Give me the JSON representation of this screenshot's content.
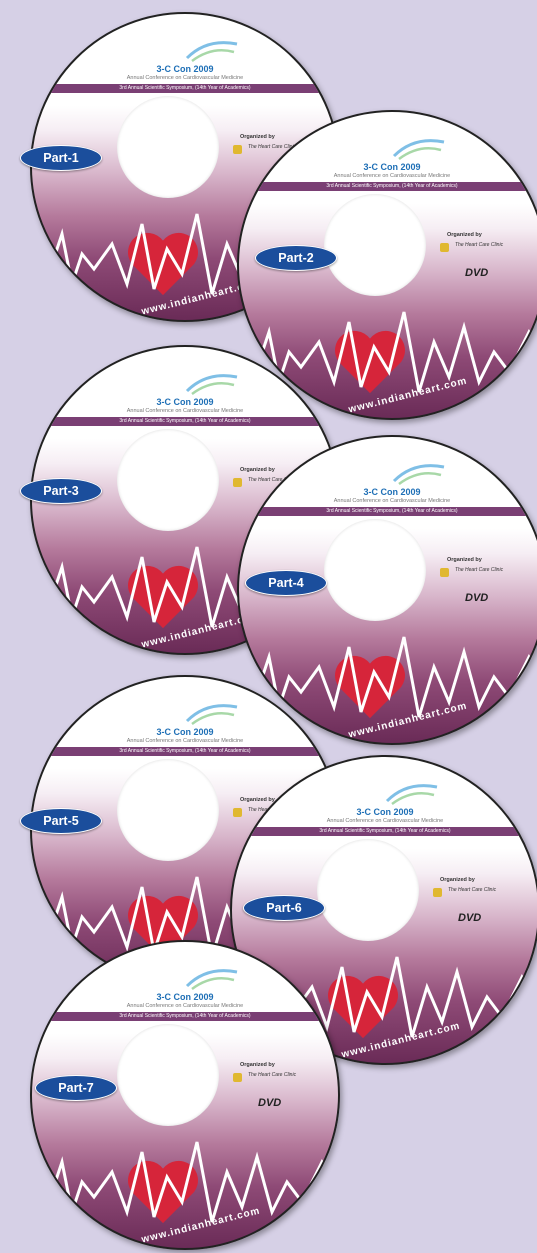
{
  "disc": {
    "title": "3-C Con 2009",
    "subtitle": "Annual Conference on Cardiovascular Medicine",
    "band": "3rd Annual Scientific Symposium, (14th Year of Academics)",
    "organized_by": "Organized by",
    "organizer": "The Heart Care Clinic",
    "dvd": "DVD",
    "url": "www.indianheart.com"
  },
  "parts": [
    "Part-1",
    "Part-2",
    "Part-3",
    "Part-4",
    "Part-5",
    "Part-6",
    "Part-7"
  ],
  "colors": {
    "background": "#d6d0e6",
    "badge": "#1b4e9c",
    "heart": "#d6253a",
    "band": "#7a3f74"
  }
}
